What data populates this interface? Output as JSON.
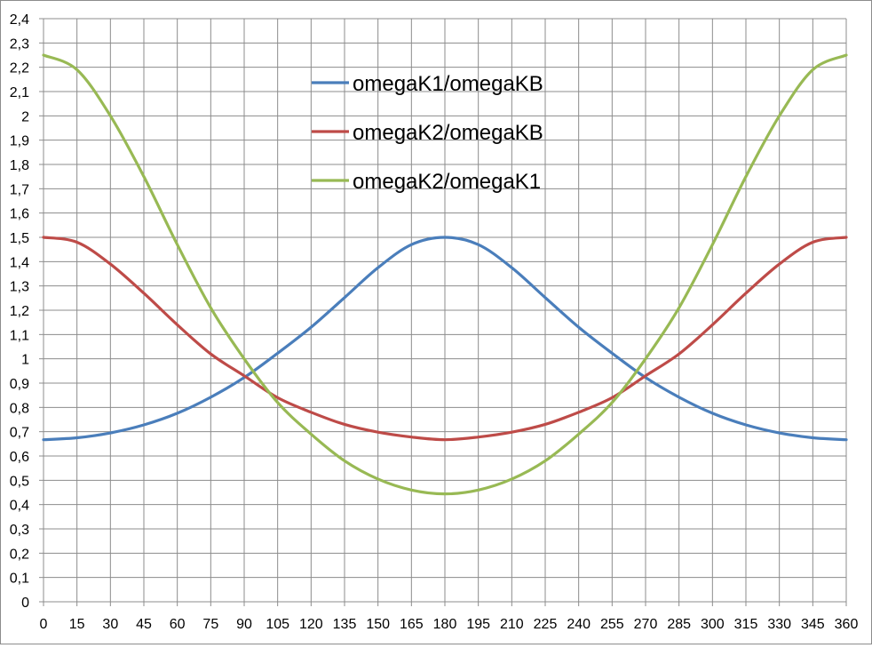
{
  "chart_data": {
    "type": "line",
    "title": "",
    "xlabel": "",
    "ylabel": "",
    "xlim": [
      0,
      360
    ],
    "ylim": [
      0,
      2.4
    ],
    "x_ticks": [
      "0",
      "15",
      "30",
      "45",
      "60",
      "75",
      "90",
      "105",
      "120",
      "135",
      "150",
      "165",
      "180",
      "195",
      "210",
      "225",
      "240",
      "255",
      "270",
      "285",
      "300",
      "315",
      "330",
      "345",
      "360"
    ],
    "y_ticks": [
      "0",
      "0,1",
      "0,2",
      "0,3",
      "0,4",
      "0,5",
      "0,6",
      "0,7",
      "0,8",
      "0,9",
      "1",
      "1,1",
      "1,2",
      "1,3",
      "1,4",
      "1,5",
      "1,6",
      "1,7",
      "1,8",
      "1,9",
      "2",
      "2,1",
      "2,2",
      "2,3",
      "2,4"
    ],
    "grid": true,
    "legend_position": "top-center",
    "x": [
      0,
      15,
      30,
      45,
      60,
      75,
      90,
      105,
      120,
      135,
      150,
      165,
      180,
      195,
      210,
      225,
      240,
      255,
      270,
      285,
      300,
      315,
      330,
      345,
      360
    ],
    "series": [
      {
        "name": "omegaK1/omegaKB",
        "color": "#4a7ebb",
        "values": [
          0.667,
          0.675,
          0.695,
          0.728,
          0.776,
          0.842,
          0.923,
          1.023,
          1.13,
          1.252,
          1.375,
          1.47,
          1.5,
          1.47,
          1.375,
          1.252,
          1.13,
          1.023,
          0.923,
          0.842,
          0.776,
          0.728,
          0.695,
          0.675,
          0.667
        ]
      },
      {
        "name": "omegaK2/omegaKB",
        "color": "#be4b48",
        "values": [
          1.5,
          1.48,
          1.39,
          1.27,
          1.14,
          1.02,
          0.93,
          0.84,
          0.78,
          0.73,
          0.698,
          0.678,
          0.667,
          0.678,
          0.698,
          0.73,
          0.78,
          0.84,
          0.93,
          1.02,
          1.14,
          1.27,
          1.39,
          1.48,
          1.5
        ]
      },
      {
        "name": "omegaK2/omegaK1",
        "color": "#98b954",
        "values": [
          2.25,
          2.19,
          2.0,
          1.75,
          1.47,
          1.21,
          1.0,
          0.82,
          0.69,
          0.58,
          0.505,
          0.46,
          0.444,
          0.46,
          0.505,
          0.58,
          0.69,
          0.82,
          1.0,
          1.21,
          1.47,
          1.75,
          2.0,
          2.19,
          2.25
        ]
      }
    ]
  }
}
